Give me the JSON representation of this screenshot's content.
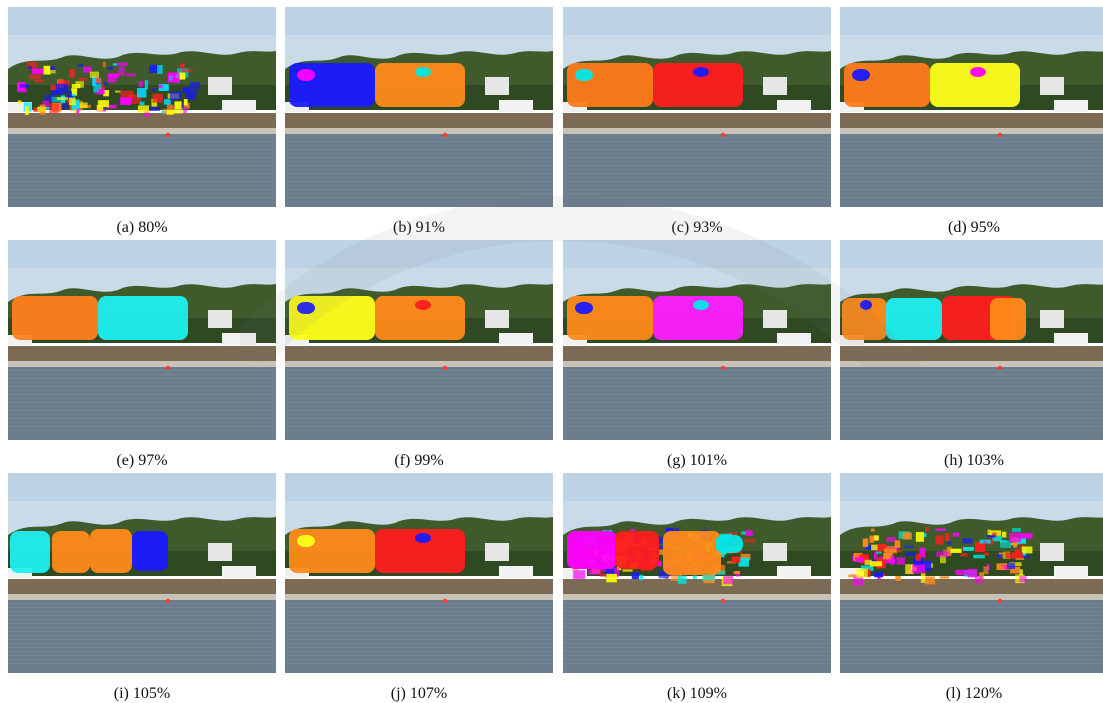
{
  "panels": [
    {
      "label": "(a) 80%",
      "scheme": "scatter",
      "colors": [
        "#ff2020",
        "#ff7f1e",
        "#1818ff",
        "#ff00ff",
        "#00e0ff",
        "#ffff00"
      ]
    },
    {
      "label": "(b) 91%",
      "scheme": "two",
      "colors": [
        "#1a1aff",
        "#ff8a1a",
        "#ff00ff",
        "#00e8e8"
      ]
    },
    {
      "label": "(c) 93%",
      "scheme": "two",
      "colors": [
        "#ff7a1a",
        "#ff1e1e",
        "#00e8e8",
        "#1a1aff"
      ]
    },
    {
      "label": "(d) 95%",
      "scheme": "two",
      "colors": [
        "#ff7a1a",
        "#ffff1a",
        "#1a1aff",
        "#ff00ff"
      ]
    },
    {
      "label": "(e) 97%",
      "scheme": "two",
      "colors": [
        "#ff7f1e",
        "#1ef0f0"
      ]
    },
    {
      "label": "(f) 99%",
      "scheme": "two",
      "colors": [
        "#ffff1a",
        "#ff8a1a",
        "#1a1aff",
        "#ff1e1e"
      ]
    },
    {
      "label": "(g) 101%",
      "scheme": "two",
      "colors": [
        "#ff8a1a",
        "#ff1eff",
        "#1a1aff",
        "#00e8e8"
      ]
    },
    {
      "label": "(h) 103%",
      "scheme": "three",
      "colors": [
        "#ff8a1a",
        "#1ef0f0",
        "#ff1e1e",
        "#ff8a1a",
        "#1a1aff"
      ]
    },
    {
      "label": "(i) 105%",
      "scheme": "four",
      "colors": [
        "#1ef0f0",
        "#ff8a1a",
        "#ff8a1a",
        "#1a1aff"
      ]
    },
    {
      "label": "(j) 107%",
      "scheme": "two",
      "colors": [
        "#ff8a1a",
        "#ff1e1e",
        "#ffff1a",
        "#1a1aff"
      ]
    },
    {
      "label": "(k) 109%",
      "scheme": "scatter2",
      "colors": [
        "#ff1e1e",
        "#ff8a1a",
        "#ff00ff",
        "#1a1aff",
        "#00e8e8",
        "#ffff00"
      ]
    },
    {
      "label": "(l) 120%",
      "scheme": "scatter",
      "colors": [
        "#ff1e1e",
        "#ff8a1a",
        "#ff00ff",
        "#1a1aff",
        "#00e8e8",
        "#ffff00"
      ]
    }
  ]
}
